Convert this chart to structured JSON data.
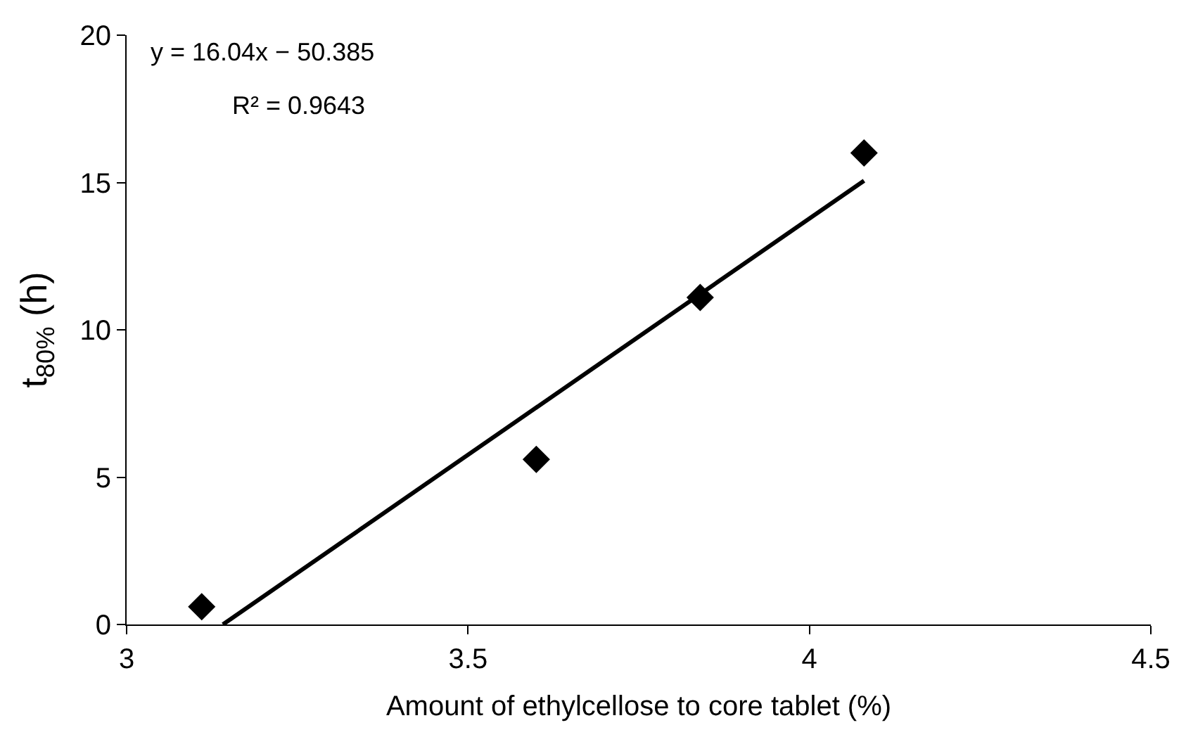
{
  "chart_data": {
    "type": "scatter",
    "xlabel": "Amount of ethylcellose to core tablet (%)",
    "ylabel": "t$_{80%}$ (h)",
    "xlim": [
      3,
      4.5
    ],
    "xticks": [
      3,
      3.5,
      4,
      4.5
    ],
    "ylim": [
      0,
      20
    ],
    "yticks": [
      0,
      5,
      10,
      15,
      20
    ],
    "marker": "diamond",
    "series": [
      {
        "color": "#000000",
        "x": [
          3.11,
          3.6,
          3.84,
          4.08
        ],
        "values": [
          0.6,
          5.6,
          11.1,
          16.0
        ]
      },
      {
        "type": "line",
        "color": "#000000",
        "marker": "none",
        "line_style": "solid",
        "x": [
          3.141,
          4.08
        ],
        "values": [
          0,
          15.06
        ]
      }
    ],
    "annotations": [
      "y = 16.04x − 50.385",
      "R² = 0.9643"
    ]
  }
}
